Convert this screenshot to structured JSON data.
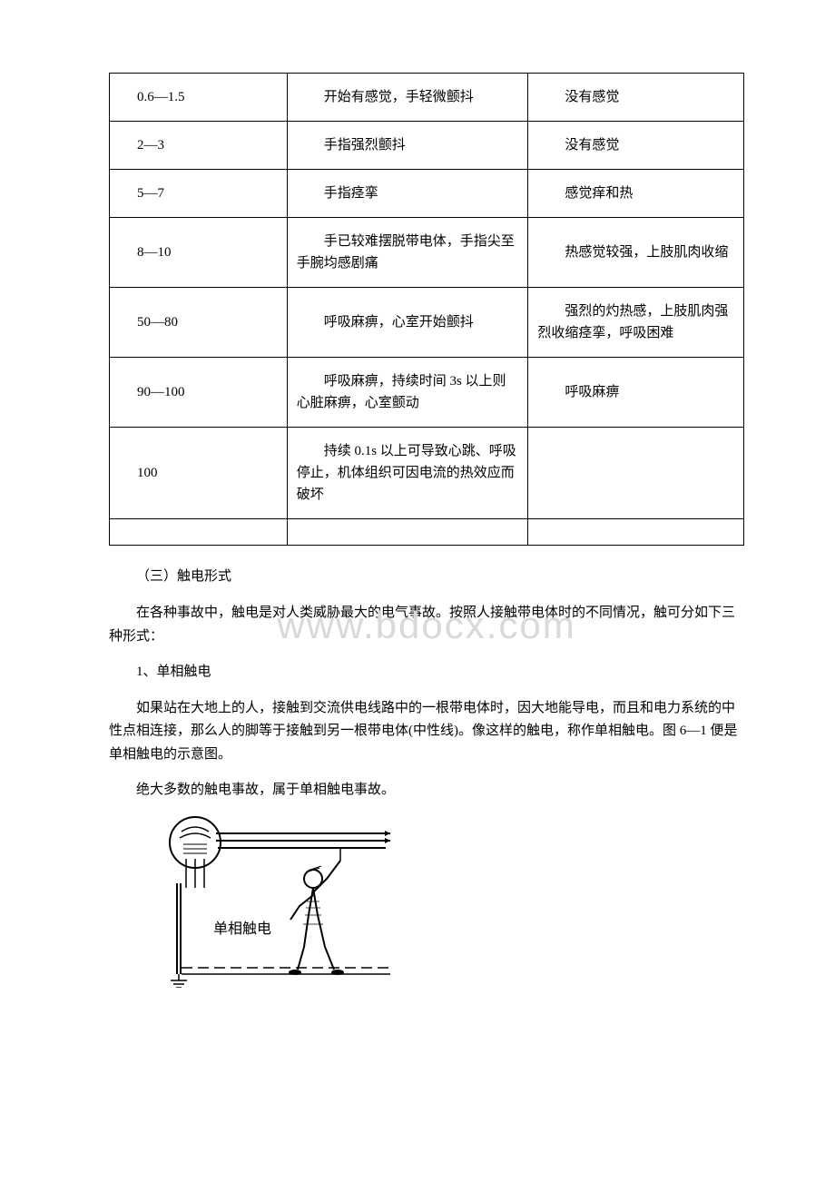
{
  "table": {
    "rows": [
      {
        "range": "0.6—1.5",
        "ac": "　　开始有感觉，手轻微颤抖",
        "dc": "　　没有感觉"
      },
      {
        "range": "2—3",
        "ac": "　　手指强烈颤抖",
        "dc": "　　没有感觉"
      },
      {
        "range": "5—7",
        "ac": "　　手指痉挛",
        "dc": "　　感觉痒和热"
      },
      {
        "range": "8—10",
        "ac": "　　手已较难摆脱带电体，手指尖至手腕均感剧痛",
        "dc": "　　热感觉较强，上肢肌肉收缩"
      },
      {
        "range": "50—80",
        "ac": "　　呼吸麻痹，心室开始颤抖",
        "dc": "　　强烈的灼热感，上肢肌肉强烈收缩痉挛，呼吸困难"
      },
      {
        "range": "90—100",
        "ac": "　　呼吸麻痹，持续时间 3s 以上则心脏麻痹，心室颤动",
        "dc": "　　呼吸麻痹"
      },
      {
        "range": "100",
        "ac": "　　持续 0.1s 以上可导致心跳、呼吸停止，机体组织可因电流的热效应而破坏",
        "dc": ""
      }
    ]
  },
  "watermark": "www.bdocx.com",
  "section_heading": "（三）触电形式",
  "para1": "在各种事故中，触电是对人类威胁最大的电气事故。按照人接触带电体时的不同情况，触可分如下三种形式：",
  "item1": "1、单相触电",
  "para2": "如果站在大地上的人，接触到交流供电线路中的一根带电体时，因大地能导电，而且和电力系统的中性点相连接，那么人的脚等于接触到另一根带电体(中性线)。像这样的触电，称作单相触电。图 6—1 便是单相触电的示意图。",
  "para3": "绝大多数的触电事故，属于单相触电事故。",
  "diagram_label": "单相触电",
  "styling": {
    "body_width": 920,
    "body_bg": "#ffffff",
    "text_color": "#000000",
    "font_family": "SimSun",
    "font_size": 15,
    "border_color": "#000000",
    "watermark_color": "#d9d9d9",
    "watermark_fontsize": 42,
    "col_widths_pct": [
      28,
      38,
      34
    ]
  }
}
